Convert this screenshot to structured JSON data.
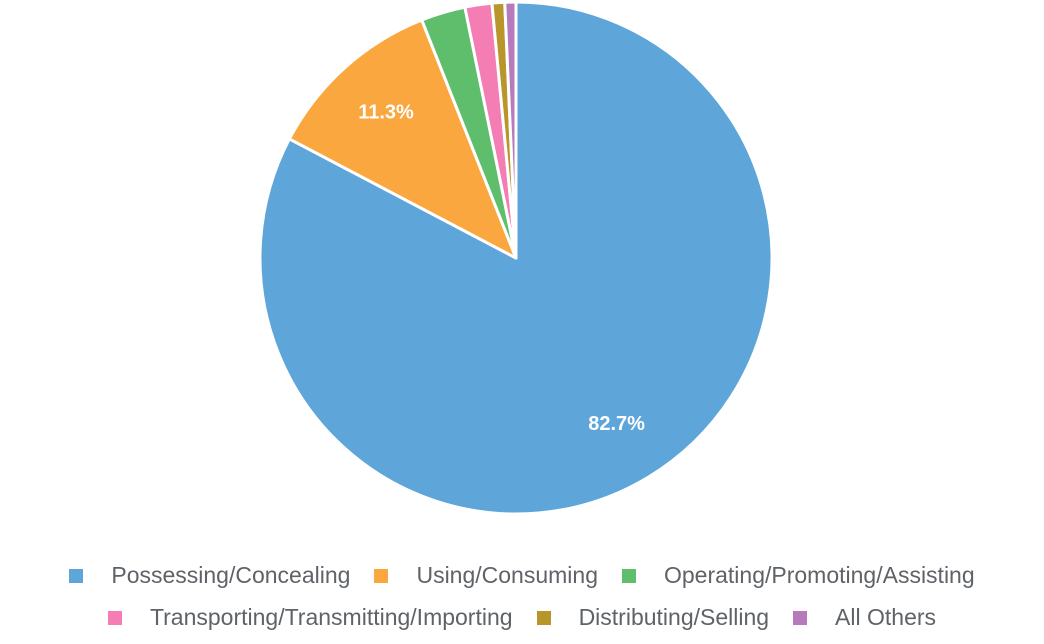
{
  "chart_data": {
    "type": "pie",
    "categories": [
      "Possessing/Concealing",
      "Using/Consuming",
      "Operating/Promoting/Assisting",
      "Transporting/Transmitting/Importing",
      "Distributing/Selling",
      "All Others"
    ],
    "values": [
      82.7,
      11.3,
      2.8,
      1.7,
      0.8,
      0.7
    ],
    "data_labels": [
      "82.7%",
      "11.3%",
      "",
      "",
      "",
      ""
    ],
    "colors": [
      "#5ea5da",
      "#f9a73e",
      "#5fbe6b",
      "#f47eb3",
      "#b8962b",
      "#b67bbd"
    ],
    "start_angle": "12 o'clock",
    "direction": "clockwise",
    "legend_position": "bottom"
  }
}
